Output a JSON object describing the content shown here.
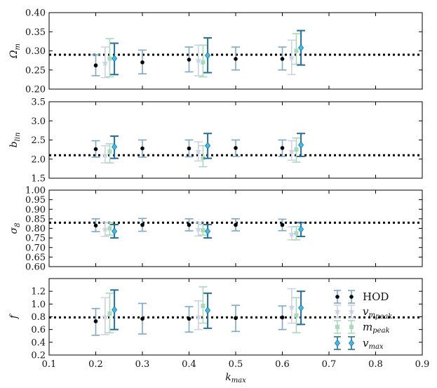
{
  "chart_data": {
    "type": "errorbar",
    "x_axis": {
      "label": "k",
      "label_subscript": "max",
      "xlim": [
        0.1,
        0.9
      ],
      "ticks": [
        0.1,
        0.2,
        0.3,
        0.4,
        0.5,
        0.6,
        0.7,
        0.8,
        0.9
      ],
      "tick_labels": [
        "0.1",
        "0.2",
        "0.3",
        "0.4",
        "0.5",
        "0.6",
        "0.7",
        "0.8",
        "0.9"
      ]
    },
    "series_meta": [
      {
        "key": "hod",
        "name": "HOD",
        "color": "#7aa9cf",
        "marker": "dot",
        "marker_color": "#000000"
      },
      {
        "key": "vmpeak",
        "name": "v",
        "subscript": "m",
        "subsubscript": "peak",
        "color": "#cdd3e4",
        "marker": "star",
        "marker_color": "#cdd3e4"
      },
      {
        "key": "mpeak",
        "name": "m",
        "subscript": "peak",
        "color": "#a8dbb9",
        "marker": "square",
        "marker_color": "#a8dbb9"
      },
      {
        "key": "vmax",
        "name": "v",
        "subscript": "max",
        "color": "#1f6fa3",
        "marker": "diamond",
        "marker_color": "#31c2f0"
      }
    ],
    "offsets": {
      "hod": 0.0,
      "vmpeak": 0.02,
      "mpeak": 0.03,
      "vmax": 0.04
    },
    "panels": [
      {
        "id": "omega",
        "ylabel": "Ω",
        "ylabel_subscript": "m",
        "ylim": [
          0.2,
          0.4
        ],
        "yticks": [
          0.2,
          0.25,
          0.3,
          0.35,
          0.4
        ],
        "ytick_labels": [
          "0.20",
          "0.25",
          "0.30",
          "0.35",
          "0.40"
        ],
        "truth": 0.29,
        "series": {
          "hod": {
            "x": [
              0.2,
              0.3,
              0.4,
              0.5,
              0.6
            ],
            "y": [
              0.262,
              0.27,
              0.277,
              0.279,
              0.279
            ],
            "lo": [
              0.235,
              0.24,
              0.245,
              0.25,
              0.25
            ],
            "hi": [
              0.29,
              0.302,
              0.31,
              0.31,
              0.31
            ]
          },
          "vmpeak": {
            "x": [
              0.2,
              0.4,
              0.6
            ],
            "y": [
              0.268,
              0.275,
              0.282
            ],
            "lo": [
              0.23,
              0.235,
              0.238
            ],
            "hi": [
              0.31,
              0.315,
              0.328
            ]
          },
          "mpeak": {
            "x": [
              0.2,
              0.4,
              0.6
            ],
            "y": [
              0.28,
              0.27,
              0.3
            ],
            "lo": [
              0.232,
              0.232,
              0.265
            ],
            "hi": [
              0.332,
              0.315,
              0.345
            ]
          },
          "vmax": {
            "x": [
              0.2,
              0.4,
              0.6
            ],
            "y": [
              0.28,
              0.288,
              0.308
            ],
            "lo": [
              0.238,
              0.243,
              0.263
            ],
            "hi": [
              0.32,
              0.334,
              0.353
            ]
          }
        }
      },
      {
        "id": "blin",
        "ylabel": "b",
        "ylabel_subscript": "lin",
        "ylim": [
          1.5,
          3.5
        ],
        "yticks": [
          1.5,
          2.0,
          2.5,
          3.0,
          3.5
        ],
        "ytick_labels": [
          "1.5",
          "2.0",
          "2.5",
          "3.0",
          "3.5"
        ],
        "truth": 2.1,
        "series": {
          "hod": {
            "x": [
              0.2,
              0.3,
              0.4,
              0.5,
              0.6
            ],
            "y": [
              2.26,
              2.28,
              2.28,
              2.29,
              2.29
            ],
            "lo": [
              2.05,
              2.05,
              2.06,
              2.07,
              2.07
            ],
            "hi": [
              2.48,
              2.5,
              2.5,
              2.5,
              2.5
            ]
          },
          "vmpeak": {
            "x": [
              0.2,
              0.4,
              0.6
            ],
            "y": [
              2.1,
              2.2,
              2.2
            ],
            "lo": [
              1.9,
              1.95,
              1.97
            ],
            "hi": [
              2.35,
              2.45,
              2.48
            ]
          },
          "mpeak": {
            "x": [
              0.2,
              0.4,
              0.6
            ],
            "y": [
              2.2,
              2.03,
              2.25
            ],
            "lo": [
              1.9,
              1.8,
              1.92
            ],
            "hi": [
              2.4,
              2.35,
              2.55
            ]
          },
          "vmax": {
            "x": [
              0.2,
              0.4,
              0.6
            ],
            "y": [
              2.32,
              2.35,
              2.37
            ],
            "lo": [
              2.02,
              2.02,
              2.07
            ],
            "hi": [
              2.6,
              2.67,
              2.67
            ]
          }
        }
      },
      {
        "id": "sigma8",
        "ylabel": "σ",
        "ylabel_subscript": "8",
        "ylim": [
          0.6,
          1.0
        ],
        "yticks": [
          0.6,
          0.65,
          0.7,
          0.75,
          0.8,
          0.85,
          0.9,
          0.95,
          1.0
        ],
        "ytick_labels": [
          "0.60",
          "0.65",
          "0.70",
          "0.75",
          "0.80",
          "0.85",
          "0.90",
          "0.95",
          "1.00"
        ],
        "truth": 0.83,
        "series": {
          "hod": {
            "x": [
              0.2,
              0.3,
              0.4,
              0.5,
              0.6
            ],
            "y": [
              0.815,
              0.818,
              0.818,
              0.818,
              0.818
            ],
            "lo": [
              0.783,
              0.785,
              0.787,
              0.787,
              0.788
            ],
            "hi": [
              0.85,
              0.852,
              0.85,
              0.85,
              0.848
            ]
          },
          "vmpeak": {
            "x": [
              0.2,
              0.4,
              0.6
            ],
            "y": [
              0.795,
              0.795,
              0.77
            ],
            "lo": [
              0.758,
              0.76,
              0.74
            ],
            "hi": [
              0.83,
              0.83,
              0.808
            ]
          },
          "mpeak": {
            "x": [
              0.2,
              0.4,
              0.6
            ],
            "y": [
              0.8,
              0.79,
              0.775
            ],
            "lo": [
              0.765,
              0.765,
              0.74
            ],
            "hi": [
              0.83,
              0.82,
              0.81
            ]
          },
          "vmax": {
            "x": [
              0.2,
              0.4,
              0.6
            ],
            "y": [
              0.785,
              0.785,
              0.795
            ],
            "lo": [
              0.75,
              0.75,
              0.758
            ],
            "hi": [
              0.82,
              0.82,
              0.83
            ]
          }
        }
      },
      {
        "id": "f",
        "ylabel": "f",
        "ylabel_subscript": "",
        "ylim": [
          0.2,
          1.4
        ],
        "yticks": [
          0.2,
          0.4,
          0.6,
          0.8,
          1.0,
          1.2
        ],
        "ytick_labels": [
          "0.2",
          "0.4",
          "0.6",
          "0.8",
          "1.0",
          "1.2"
        ],
        "truth": 0.79,
        "series": {
          "hod": {
            "x": [
              0.2,
              0.3,
              0.4,
              0.5,
              0.6
            ],
            "y": [
              0.73,
              0.77,
              0.77,
              0.78,
              0.79
            ],
            "lo": [
              0.51,
              0.53,
              0.56,
              0.57,
              0.6
            ],
            "hi": [
              0.93,
              1.01,
              0.96,
              0.98,
              0.97
            ]
          },
          "vmpeak": {
            "x": [
              0.2,
              0.4,
              0.6
            ],
            "y": [
              0.8,
              0.8,
              0.95
            ],
            "lo": [
              0.52,
              0.6,
              0.7
            ],
            "hi": [
              1.1,
              1.05,
              1.24
            ]
          },
          "mpeak": {
            "x": [
              0.2,
              0.4,
              0.6
            ],
            "y": [
              0.85,
              0.97,
              0.82
            ],
            "lo": [
              0.55,
              0.7,
              0.55
            ],
            "hi": [
              1.17,
              1.27,
              1.1
            ]
          },
          "vmax": {
            "x": [
              0.2,
              0.4,
              0.6
            ],
            "y": [
              0.91,
              0.9,
              0.94
            ],
            "lo": [
              0.6,
              0.62,
              0.68
            ],
            "hi": [
              1.22,
              1.17,
              1.2
            ]
          }
        }
      }
    ],
    "legend": {
      "placement": "inside-right of bottom panel"
    }
  }
}
